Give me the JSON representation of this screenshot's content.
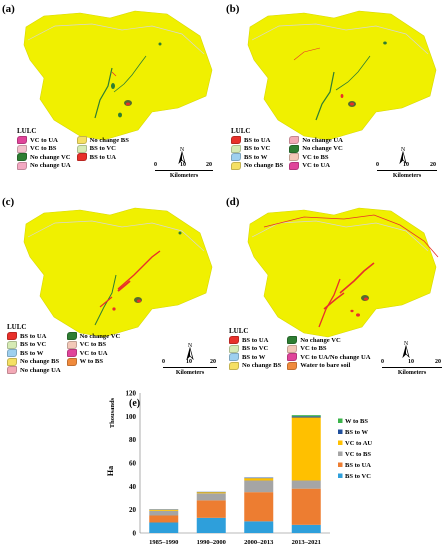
{
  "colors": {
    "base": "#f0f000",
    "stroke": "#d8d800",
    "road": "#d6d6d6",
    "W_to_BS": "#3cb44b",
    "BS_to_W": "#1f4e9c",
    "VC_to_AU": "#ffc000",
    "VC_to_BS": "#a5a5a5",
    "BS_to_UA": "#ed7d31",
    "BS_to_VC": "#2e9fdb"
  },
  "panels": [
    {
      "label": "(a)",
      "legend_title": "LULC",
      "legend_items": [
        {
          "text": "VC to UA",
          "color": "#e0449a"
        },
        {
          "text": "No change BS",
          "color": "#f5e063"
        },
        {
          "text": "VC to BS",
          "color": "#f3c0cc"
        },
        {
          "text": "BS to VC",
          "color": "#d6ebb4"
        },
        {
          "text": "No change VC",
          "color": "#2e7d32"
        },
        {
          "text": "BS to UA",
          "color": "#e8302a"
        },
        {
          "text": "No change UA",
          "color": "#f3a9c2"
        }
      ],
      "scale": {
        "zero": "0",
        "ten": "10",
        "twenty": "20",
        "unit": "Kilometers"
      },
      "north": "N"
    },
    {
      "label": "(b)",
      "legend_title": "LULC",
      "legend_items": [
        {
          "text": "BS to UA",
          "color": "#e8302a"
        },
        {
          "text": "No change UA",
          "color": "#f3a9b6"
        },
        {
          "text": "BS to VC",
          "color": "#d6ebb4"
        },
        {
          "text": "No change VC",
          "color": "#2e7d32"
        },
        {
          "text": "BS to W",
          "color": "#9ed0ef"
        },
        {
          "text": "VC to BS",
          "color": "#f3c8b8"
        },
        {
          "text": "No change BS",
          "color": "#f5e063"
        },
        {
          "text": "VC to UA",
          "color": "#e0449a"
        }
      ],
      "scale": {
        "zero": "0",
        "ten": "10",
        "twenty": "20",
        "unit": "Kilometers"
      },
      "north": "N"
    },
    {
      "label": "(c)",
      "legend_title": "LULC",
      "legend_items": [
        {
          "text": "BS to UA",
          "color": "#e8302a"
        },
        {
          "text": "No change VC",
          "color": "#2e7d32"
        },
        {
          "text": "BS to VC",
          "color": "#d6ebb4"
        },
        {
          "text": "VC to BS",
          "color": "#f3c8b8"
        },
        {
          "text": "BS to W",
          "color": "#9ed0ef"
        },
        {
          "text": "VC to UA",
          "color": "#e0449a"
        },
        {
          "text": "No change BS",
          "color": "#f5e063"
        },
        {
          "text": "W to BS",
          "color": "#f08a3c"
        },
        {
          "text": "No change UA",
          "color": "#f3a9b6"
        }
      ],
      "scale": {
        "zero": "0",
        "ten": "10",
        "twenty": "20",
        "unit": "Kilometers"
      },
      "north": "N"
    },
    {
      "label": "(d)",
      "legend_title": "LULC",
      "legend_items": [
        {
          "text": "BS to UA",
          "color": "#e8302a"
        },
        {
          "text": "No change VC",
          "color": "#2e7d32"
        },
        {
          "text": "BS to VC",
          "color": "#d6ebb4"
        },
        {
          "text": "VC to BS",
          "color": "#f3c8b8"
        },
        {
          "text": "BS to W",
          "color": "#9ed0ef"
        },
        {
          "text": "VC to UA/No change UA",
          "color": "#e0449a"
        },
        {
          "text": "No change BS",
          "color": "#f5e063"
        },
        {
          "text": "Water to bare soil",
          "color": "#f08a3c"
        }
      ],
      "scale": {
        "zero": "0",
        "ten": "10",
        "twenty": "20",
        "unit": "Kilometers"
      },
      "north": "N"
    }
  ],
  "chart_data": {
    "type": "bar",
    "stacked": true,
    "label": "(e)",
    "categories": [
      "1985–1990",
      "1990–2000",
      "2000–2013",
      "2013–2021"
    ],
    "series": [
      {
        "name": "BS to VC",
        "color": "#2e9fdb",
        "values": [
          9,
          13,
          10,
          7
        ]
      },
      {
        "name": "BS to UA",
        "color": "#ed7d31",
        "values": [
          6,
          15,
          25,
          31
        ]
      },
      {
        "name": "VC to BS",
        "color": "#a5a5a5",
        "values": [
          4,
          6,
          10,
          7
        ]
      },
      {
        "name": "VC to AU",
        "color": "#ffc000",
        "values": [
          1,
          1,
          2,
          54
        ]
      },
      {
        "name": "BS to W",
        "color": "#1f4e9c",
        "values": [
          0.3,
          0.3,
          0.5,
          1
        ]
      },
      {
        "name": "W to BS",
        "color": "#3cb44b",
        "values": [
          0,
          0,
          0,
          1
        ]
      }
    ],
    "ylabel": "Ha",
    "yunit": "Thousands",
    "ylim": [
      0,
      120
    ],
    "yticks": [
      0,
      20,
      40,
      60,
      80,
      100,
      120
    ],
    "legend_order": [
      "W to BS",
      "BS to W",
      "VC to AU",
      "VC to BS",
      "BS to UA",
      "BS to VC"
    ],
    "grid": false,
    "legend_position": "right"
  }
}
